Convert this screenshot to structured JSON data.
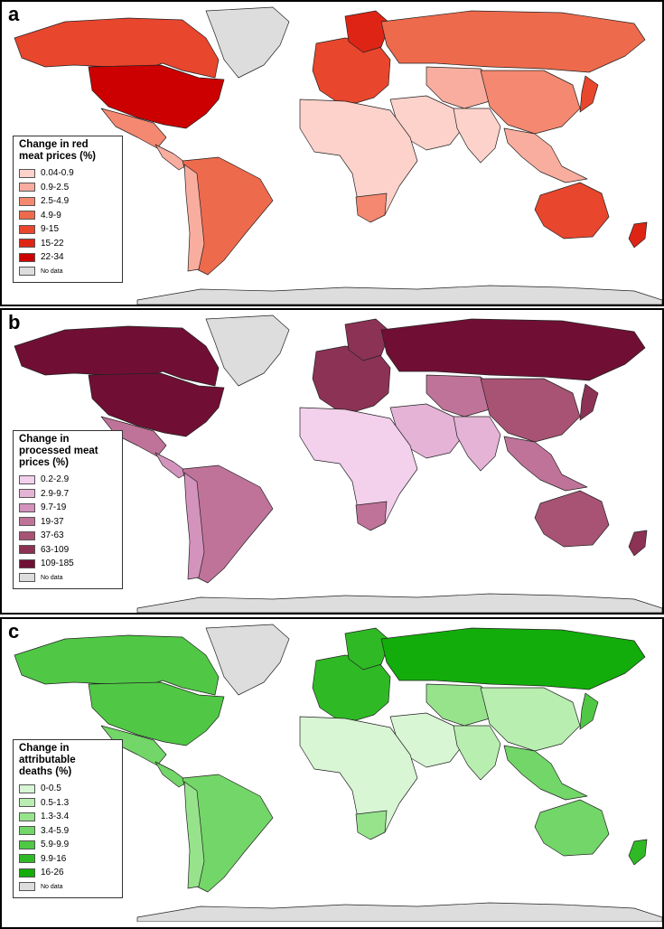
{
  "panels": [
    {
      "letter": "a",
      "legend_title": "Change in red meat prices (%)",
      "legend_title_lines": [
        "Change in red",
        "meat prices (%)"
      ],
      "bins": [
        {
          "label": "0.04-0.9",
          "color": "#fcd2cb"
        },
        {
          "label": "0.9-2.5",
          "color": "#f9ad9f"
        },
        {
          "label": "2.5-4.9",
          "color": "#f48870"
        },
        {
          "label": "4.9-9",
          "color": "#ee6a4c"
        },
        {
          "label": "9-15",
          "color": "#e8462d"
        },
        {
          "label": "15-22",
          "color": "#de2515"
        },
        {
          "label": "22-34",
          "color": "#cc0000"
        }
      ],
      "no_data": {
        "label": "No data",
        "color": "#dddddd"
      },
      "region_colors": {
        "north_america": "#e8462d",
        "usa": "#cc0000",
        "mexico": "#f48870",
        "central_america": "#f9ad9f",
        "south_america": "#ee6a4c",
        "south_america_west": "#f9ad9f",
        "europe": "#e8462d",
        "scandinavia": "#de2515",
        "russia": "#ee6a4c",
        "middle_east": "#fcd2cb",
        "africa": "#fcd2cb",
        "south_africa": "#f48870",
        "central_asia": "#f9ad9f",
        "china": "#f48870",
        "south_asia": "#fcd2cb",
        "southeast_asia": "#f9ad9f",
        "japan": "#e8462d",
        "australia": "#e8462d",
        "new_zealand": "#de2515",
        "greenland": "#dddddd",
        "antarctica": "#dddddd"
      }
    },
    {
      "letter": "b",
      "legend_title": "Change in processed meat prices (%)",
      "legend_title_lines": [
        "Change in",
        "processed meat",
        "prices (%)"
      ],
      "bins": [
        {
          "label": "0.2-2.9",
          "color": "#f3d0ec"
        },
        {
          "label": "2.9-9.7",
          "color": "#e4b3d6"
        },
        {
          "label": "9.7-19",
          "color": "#d393bd"
        },
        {
          "label": "19-37",
          "color": "#c07398"
        },
        {
          "label": "37-63",
          "color": "#a85373"
        },
        {
          "label": "63-109",
          "color": "#8c3255"
        },
        {
          "label": "109-185",
          "color": "#700f33"
        }
      ],
      "no_data": {
        "label": "No data",
        "color": "#dddddd"
      },
      "region_colors": {
        "north_america": "#700f33",
        "usa": "#700f33",
        "mexico": "#c07398",
        "central_america": "#d393bd",
        "south_america": "#c07398",
        "south_america_west": "#d393bd",
        "europe": "#8c3255",
        "scandinavia": "#8c3255",
        "russia": "#700f33",
        "middle_east": "#e4b3d6",
        "africa": "#f3d0ec",
        "south_africa": "#c07398",
        "central_asia": "#c07398",
        "china": "#a85373",
        "south_asia": "#e4b3d6",
        "southeast_asia": "#c07398",
        "japan": "#8c3255",
        "australia": "#a85373",
        "new_zealand": "#8c3255",
        "greenland": "#dddddd",
        "antarctica": "#dddddd"
      }
    },
    {
      "letter": "c",
      "legend_title": "Change in attributable deaths (%)",
      "legend_title_lines": [
        "Change in",
        "attributable",
        "deaths (%)"
      ],
      "bins": [
        {
          "label": "0-0.5",
          "color": "#d8f5d4"
        },
        {
          "label": "0.5-1.3",
          "color": "#b8eeb0"
        },
        {
          "label": "1.3-3.4",
          "color": "#96e38c"
        },
        {
          "label": "3.4-5.9",
          "color": "#73d668"
        },
        {
          "label": "5.9-9.9",
          "color": "#50c845"
        },
        {
          "label": "9.9-16",
          "color": "#2fba25"
        },
        {
          "label": "16-26",
          "color": "#12ad0a"
        }
      ],
      "no_data": {
        "label": "No data",
        "color": "#dddddd"
      },
      "region_colors": {
        "north_america": "#50c845",
        "usa": "#50c845",
        "mexico": "#73d668",
        "central_america": "#73d668",
        "south_america": "#73d668",
        "south_america_west": "#96e38c",
        "europe": "#2fba25",
        "scandinavia": "#2fba25",
        "russia": "#12ad0a",
        "middle_east": "#d8f5d4",
        "africa": "#d8f5d4",
        "south_africa": "#96e38c",
        "central_asia": "#96e38c",
        "china": "#b8eeb0",
        "south_asia": "#b8eeb0",
        "southeast_asia": "#73d668",
        "japan": "#50c845",
        "australia": "#73d668",
        "new_zealand": "#2fba25",
        "greenland": "#dddddd",
        "antarctica": "#dddddd"
      }
    }
  ]
}
